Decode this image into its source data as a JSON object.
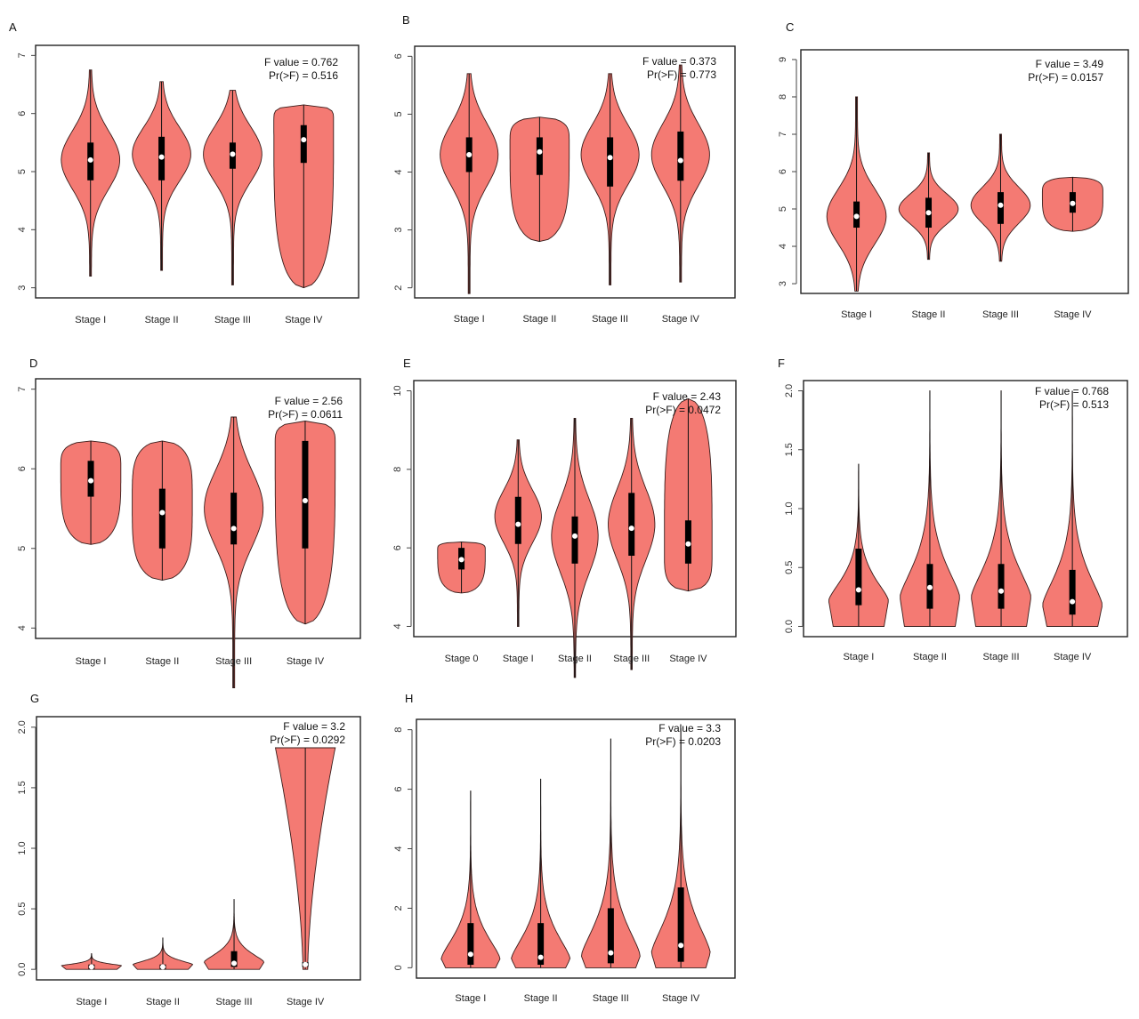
{
  "chart_data": [
    {
      "panel": "A",
      "type": "violin",
      "categories": [
        "Stage I",
        "Stage II",
        "Stage III",
        "Stage IV"
      ],
      "ylim": [
        3,
        7
      ],
      "yticks": [
        3,
        4,
        5,
        6,
        7
      ],
      "stats": [
        "F value = 0.762",
        "Pr(>F) = 0.516"
      ],
      "violins": [
        {
          "min": 3.2,
          "max": 6.75,
          "q1": 4.85,
          "median": 5.2,
          "q3": 5.5,
          "peak": 5.2,
          "shape": "bulb"
        },
        {
          "min": 3.3,
          "max": 6.55,
          "q1": 4.85,
          "median": 5.25,
          "q3": 5.6,
          "peak": 5.3,
          "shape": "bulb"
        },
        {
          "min": 3.05,
          "max": 6.4,
          "q1": 5.05,
          "median": 5.3,
          "q3": 5.5,
          "peak": 5.3,
          "shape": "bulb"
        },
        {
          "min": 3.0,
          "max": 6.15,
          "q1": 5.15,
          "median": 5.55,
          "q3": 5.8,
          "peak": 5.9,
          "shape": "flattop"
        }
      ]
    },
    {
      "panel": "B",
      "type": "violin",
      "categories": [
        "Stage I",
        "Stage II",
        "Stage III",
        "Stage IV"
      ],
      "ylim": [
        2,
        6
      ],
      "yticks": [
        2,
        3,
        4,
        5,
        6
      ],
      "stats": [
        "F value = 0.373",
        "Pr(>F) = 0.773"
      ],
      "violins": [
        {
          "min": 1.9,
          "max": 5.7,
          "q1": 4.0,
          "median": 4.3,
          "q3": 4.6,
          "peak": 4.3,
          "shape": "bulb"
        },
        {
          "min": 2.8,
          "max": 4.95,
          "q1": 3.95,
          "median": 4.35,
          "q3": 4.6,
          "peak": 4.5,
          "shape": "flattop"
        },
        {
          "min": 2.05,
          "max": 5.7,
          "q1": 3.75,
          "median": 4.25,
          "q3": 4.6,
          "peak": 4.3,
          "shape": "bulb"
        },
        {
          "min": 2.1,
          "max": 5.85,
          "q1": 3.85,
          "median": 4.2,
          "q3": 4.7,
          "peak": 4.3,
          "shape": "bulb"
        }
      ]
    },
    {
      "panel": "C",
      "type": "violin",
      "categories": [
        "Stage I",
        "Stage II",
        "Stage III",
        "Stage IV"
      ],
      "ylim": [
        3,
        9
      ],
      "yticks": [
        3,
        4,
        5,
        6,
        7,
        8,
        9
      ],
      "stats": [
        "F value = 3.49",
        "Pr(>F) = 0.0157"
      ],
      "violins": [
        {
          "min": 2.8,
          "max": 8.0,
          "q1": 4.5,
          "median": 4.8,
          "q3": 5.2,
          "peak": 4.8,
          "shape": "bulb"
        },
        {
          "min": 3.65,
          "max": 6.5,
          "q1": 4.5,
          "median": 4.9,
          "q3": 5.3,
          "peak": 5.0,
          "shape": "bulb"
        },
        {
          "min": 3.6,
          "max": 7.0,
          "q1": 4.6,
          "median": 5.1,
          "q3": 5.45,
          "peak": 5.1,
          "shape": "bulb"
        },
        {
          "min": 4.4,
          "max": 5.85,
          "q1": 4.9,
          "median": 5.15,
          "q3": 5.45,
          "peak": 5.4,
          "shape": "flattop"
        }
      ]
    },
    {
      "panel": "D",
      "type": "violin",
      "categories": [
        "Stage I",
        "Stage II",
        "Stage III",
        "Stage IV"
      ],
      "ylim": [
        4,
        7
      ],
      "yticks": [
        4,
        5,
        6,
        7
      ],
      "stats": [
        "F value = 2.56",
        "Pr(>F) = 0.0611"
      ],
      "violins": [
        {
          "min": 5.05,
          "max": 6.35,
          "q1": 5.65,
          "median": 5.85,
          "q3": 6.1,
          "peak": 6.0,
          "shape": "flattop"
        },
        {
          "min": 4.6,
          "max": 6.35,
          "q1": 5.0,
          "median": 5.45,
          "q3": 5.75,
          "peak": 5.6,
          "shape": "flattop"
        },
        {
          "min": 3.25,
          "max": 6.65,
          "q1": 5.05,
          "median": 5.25,
          "q3": 5.7,
          "peak": 5.5,
          "shape": "bulb"
        },
        {
          "min": 4.05,
          "max": 6.6,
          "q1": 5.0,
          "median": 5.6,
          "q3": 6.35,
          "peak": 6.3,
          "shape": "flattop"
        }
      ]
    },
    {
      "panel": "E",
      "type": "violin",
      "categories": [
        "Stage 0",
        "Stage I",
        "Stage II",
        "Stage III",
        "Stage IV"
      ],
      "ylim": [
        4,
        10
      ],
      "yticks": [
        4,
        6,
        8,
        10
      ],
      "stats": [
        "F value = 2.43",
        "Pr(>F) = 0.0472"
      ],
      "violins": [
        {
          "min": 4.85,
          "max": 6.15,
          "q1": 5.45,
          "median": 5.7,
          "q3": 6.0,
          "peak": 5.95,
          "shape": "flattop"
        },
        {
          "min": 4.0,
          "max": 8.75,
          "q1": 6.1,
          "median": 6.6,
          "q3": 7.3,
          "peak": 6.8,
          "shape": "bulb"
        },
        {
          "min": 2.7,
          "max": 9.3,
          "q1": 5.6,
          "median": 6.3,
          "q3": 6.8,
          "peak": 6.3,
          "shape": "bulb"
        },
        {
          "min": 2.9,
          "max": 9.3,
          "q1": 5.8,
          "median": 6.5,
          "q3": 7.4,
          "peak": 6.6,
          "shape": "bulb"
        },
        {
          "min": 4.9,
          "max": 9.8,
          "q1": 5.6,
          "median": 6.1,
          "q3": 6.7,
          "peak": 5.9,
          "shape": "flattop"
        }
      ]
    },
    {
      "panel": "F",
      "type": "violin",
      "categories": [
        "Stage I",
        "Stage II",
        "Stage III",
        "Stage IV"
      ],
      "ylim": [
        0,
        2.0
      ],
      "yticks": [
        0.0,
        0.5,
        1.0,
        1.5,
        2.0
      ],
      "stats": [
        "F value = 0.768",
        "Pr(>F) = 0.513"
      ],
      "violins": [
        {
          "min": 0.0,
          "max": 1.38,
          "q1": 0.18,
          "median": 0.31,
          "q3": 0.66,
          "peak": 0.22,
          "shape": "base"
        },
        {
          "min": 0.0,
          "max": 2.0,
          "q1": 0.15,
          "median": 0.33,
          "q3": 0.53,
          "peak": 0.25,
          "shape": "base"
        },
        {
          "min": 0.0,
          "max": 2.0,
          "q1": 0.15,
          "median": 0.3,
          "q3": 0.53,
          "peak": 0.25,
          "shape": "base"
        },
        {
          "min": 0.0,
          "max": 2.0,
          "q1": 0.1,
          "median": 0.21,
          "q3": 0.48,
          "peak": 0.18,
          "shape": "base"
        }
      ]
    },
    {
      "panel": "G",
      "type": "violin",
      "categories": [
        "Stage I",
        "Stage II",
        "Stage III",
        "Stage IV"
      ],
      "ylim": [
        0,
        2.0
      ],
      "yticks": [
        0.0,
        0.5,
        1.0,
        1.5,
        2.0
      ],
      "stats": [
        "F value = 3.2",
        "Pr(>F) = 0.0292"
      ],
      "violins": [
        {
          "min": 0.0,
          "max": 0.13,
          "q1": 0.0,
          "median": 0.02,
          "q3": 0.04,
          "peak": 0.03,
          "shape": "base"
        },
        {
          "min": 0.0,
          "max": 0.26,
          "q1": 0.0,
          "median": 0.02,
          "q3": 0.04,
          "peak": 0.04,
          "shape": "base"
        },
        {
          "min": 0.0,
          "max": 0.58,
          "q1": 0.02,
          "median": 0.05,
          "q3": 0.15,
          "peak": 0.06,
          "shape": "base"
        },
        {
          "min": 0.0,
          "max": 1.83,
          "q1": 0.02,
          "median": 0.04,
          "q3": 0.06,
          "peak": 0.05,
          "shape": "fan"
        }
      ]
    },
    {
      "panel": "H",
      "type": "violin",
      "categories": [
        "Stage I",
        "Stage II",
        "Stage III",
        "Stage IV"
      ],
      "ylim": [
        0,
        8
      ],
      "yticks": [
        0,
        2,
        4,
        6,
        8
      ],
      "stats": [
        "F value = 3.3",
        "Pr(>F) = 0.0203"
      ],
      "violins": [
        {
          "min": 0.0,
          "max": 5.95,
          "q1": 0.1,
          "median": 0.45,
          "q3": 1.5,
          "peak": 0.3,
          "shape": "base"
        },
        {
          "min": 0.0,
          "max": 6.35,
          "q1": 0.1,
          "median": 0.35,
          "q3": 1.5,
          "peak": 0.3,
          "shape": "base"
        },
        {
          "min": 0.0,
          "max": 7.7,
          "q1": 0.15,
          "median": 0.5,
          "q3": 2.0,
          "peak": 0.4,
          "shape": "base"
        },
        {
          "min": 0.0,
          "max": 8.05,
          "q1": 0.2,
          "median": 0.75,
          "q3": 2.7,
          "peak": 0.5,
          "shape": "base"
        }
      ]
    }
  ],
  "colors": {
    "violin_fill": "#f47a73",
    "violin_stroke": "#3a1d1b",
    "box": "#000000",
    "median": "#ffffff",
    "frame": "#222222"
  }
}
